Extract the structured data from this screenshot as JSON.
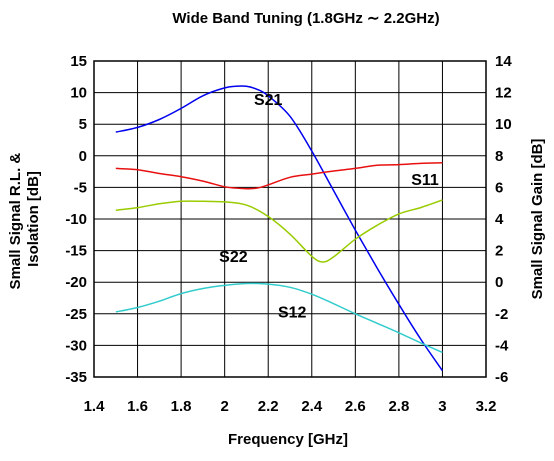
{
  "chart_data": {
    "type": "line",
    "title": "Wide Band Tuning (1.8GHz ∼ 2.2GHz)",
    "xlabel": "Frequency [GHz]",
    "ylabel_left": "Small Signal R.L. & Isolation [dB]",
    "ylabel_left_lines": [
      "Small Signal R.L. &",
      "Isolation [dB]"
    ],
    "ylabel_right": "Small Signal Gain [dB]",
    "xlim": [
      1.4,
      3.2
    ],
    "ylim_left": [
      -35,
      15
    ],
    "ylim_right": [
      -6,
      14
    ],
    "xticks": [
      "1.4",
      "1.6",
      "1.8",
      "2",
      "2.2",
      "2.4",
      "2.6",
      "2.8",
      "3",
      "3.2"
    ],
    "yticks_left": [
      "15",
      "10",
      "5",
      "0",
      "-5",
      "-10",
      "-15",
      "-20",
      "-25",
      "-30",
      "-35"
    ],
    "yticks_right": [
      "14",
      "12",
      "10",
      "8",
      "6",
      "4",
      "2",
      "0",
      "-2",
      "-4",
      "-6"
    ],
    "grid": true,
    "series": [
      {
        "name": "S21",
        "axis": "right",
        "color": "#0000ee",
        "x": [
          1.5,
          1.6,
          1.7,
          1.8,
          1.9,
          2.0,
          2.05,
          2.1,
          2.15,
          2.2,
          2.3,
          2.4,
          2.5,
          2.6,
          2.7,
          2.8,
          2.9,
          3.0
        ],
        "y": [
          9.5,
          9.8,
          10.3,
          11.0,
          11.8,
          12.3,
          12.4,
          12.4,
          12.2,
          11.8,
          10.5,
          8.3,
          5.8,
          3.3,
          0.9,
          -1.4,
          -3.6,
          -5.6
        ]
      },
      {
        "name": "S11",
        "axis": "left",
        "color": "#e81010",
        "x": [
          1.5,
          1.6,
          1.7,
          1.8,
          1.9,
          2.0,
          2.05,
          2.1,
          2.15,
          2.2,
          2.3,
          2.4,
          2.5,
          2.6,
          2.7,
          2.8,
          2.9,
          3.0
        ],
        "y": [
          -2.0,
          -2.2,
          -2.8,
          -3.3,
          -4.0,
          -4.9,
          -5.1,
          -5.2,
          -5.1,
          -4.6,
          -3.4,
          -2.9,
          -2.4,
          -2.0,
          -1.5,
          -1.4,
          -1.2,
          -1.1
        ]
      },
      {
        "name": "S22",
        "axis": "left",
        "color": "#99cc00",
        "x": [
          1.5,
          1.6,
          1.7,
          1.8,
          1.9,
          2.0,
          2.1,
          2.2,
          2.3,
          2.4,
          2.45,
          2.5,
          2.6,
          2.7,
          2.8,
          2.9,
          3.0
        ],
        "y": [
          -8.6,
          -8.2,
          -7.6,
          -7.2,
          -7.2,
          -7.3,
          -7.8,
          -9.6,
          -12.4,
          -15.9,
          -16.8,
          -16.0,
          -13.2,
          -11.0,
          -9.2,
          -8.2,
          -7.0
        ]
      },
      {
        "name": "S12",
        "axis": "left",
        "color": "#33cccc",
        "x": [
          1.5,
          1.6,
          1.7,
          1.8,
          1.9,
          2.0,
          2.1,
          2.2,
          2.3,
          2.4,
          2.5,
          2.6,
          2.7,
          2.8,
          2.9,
          3.0
        ],
        "y": [
          -24.7,
          -24.0,
          -23.0,
          -21.8,
          -21.0,
          -20.5,
          -20.2,
          -20.3,
          -20.8,
          -21.9,
          -23.4,
          -25.0,
          -26.5,
          -28.0,
          -29.6,
          -31.1
        ]
      }
    ]
  }
}
